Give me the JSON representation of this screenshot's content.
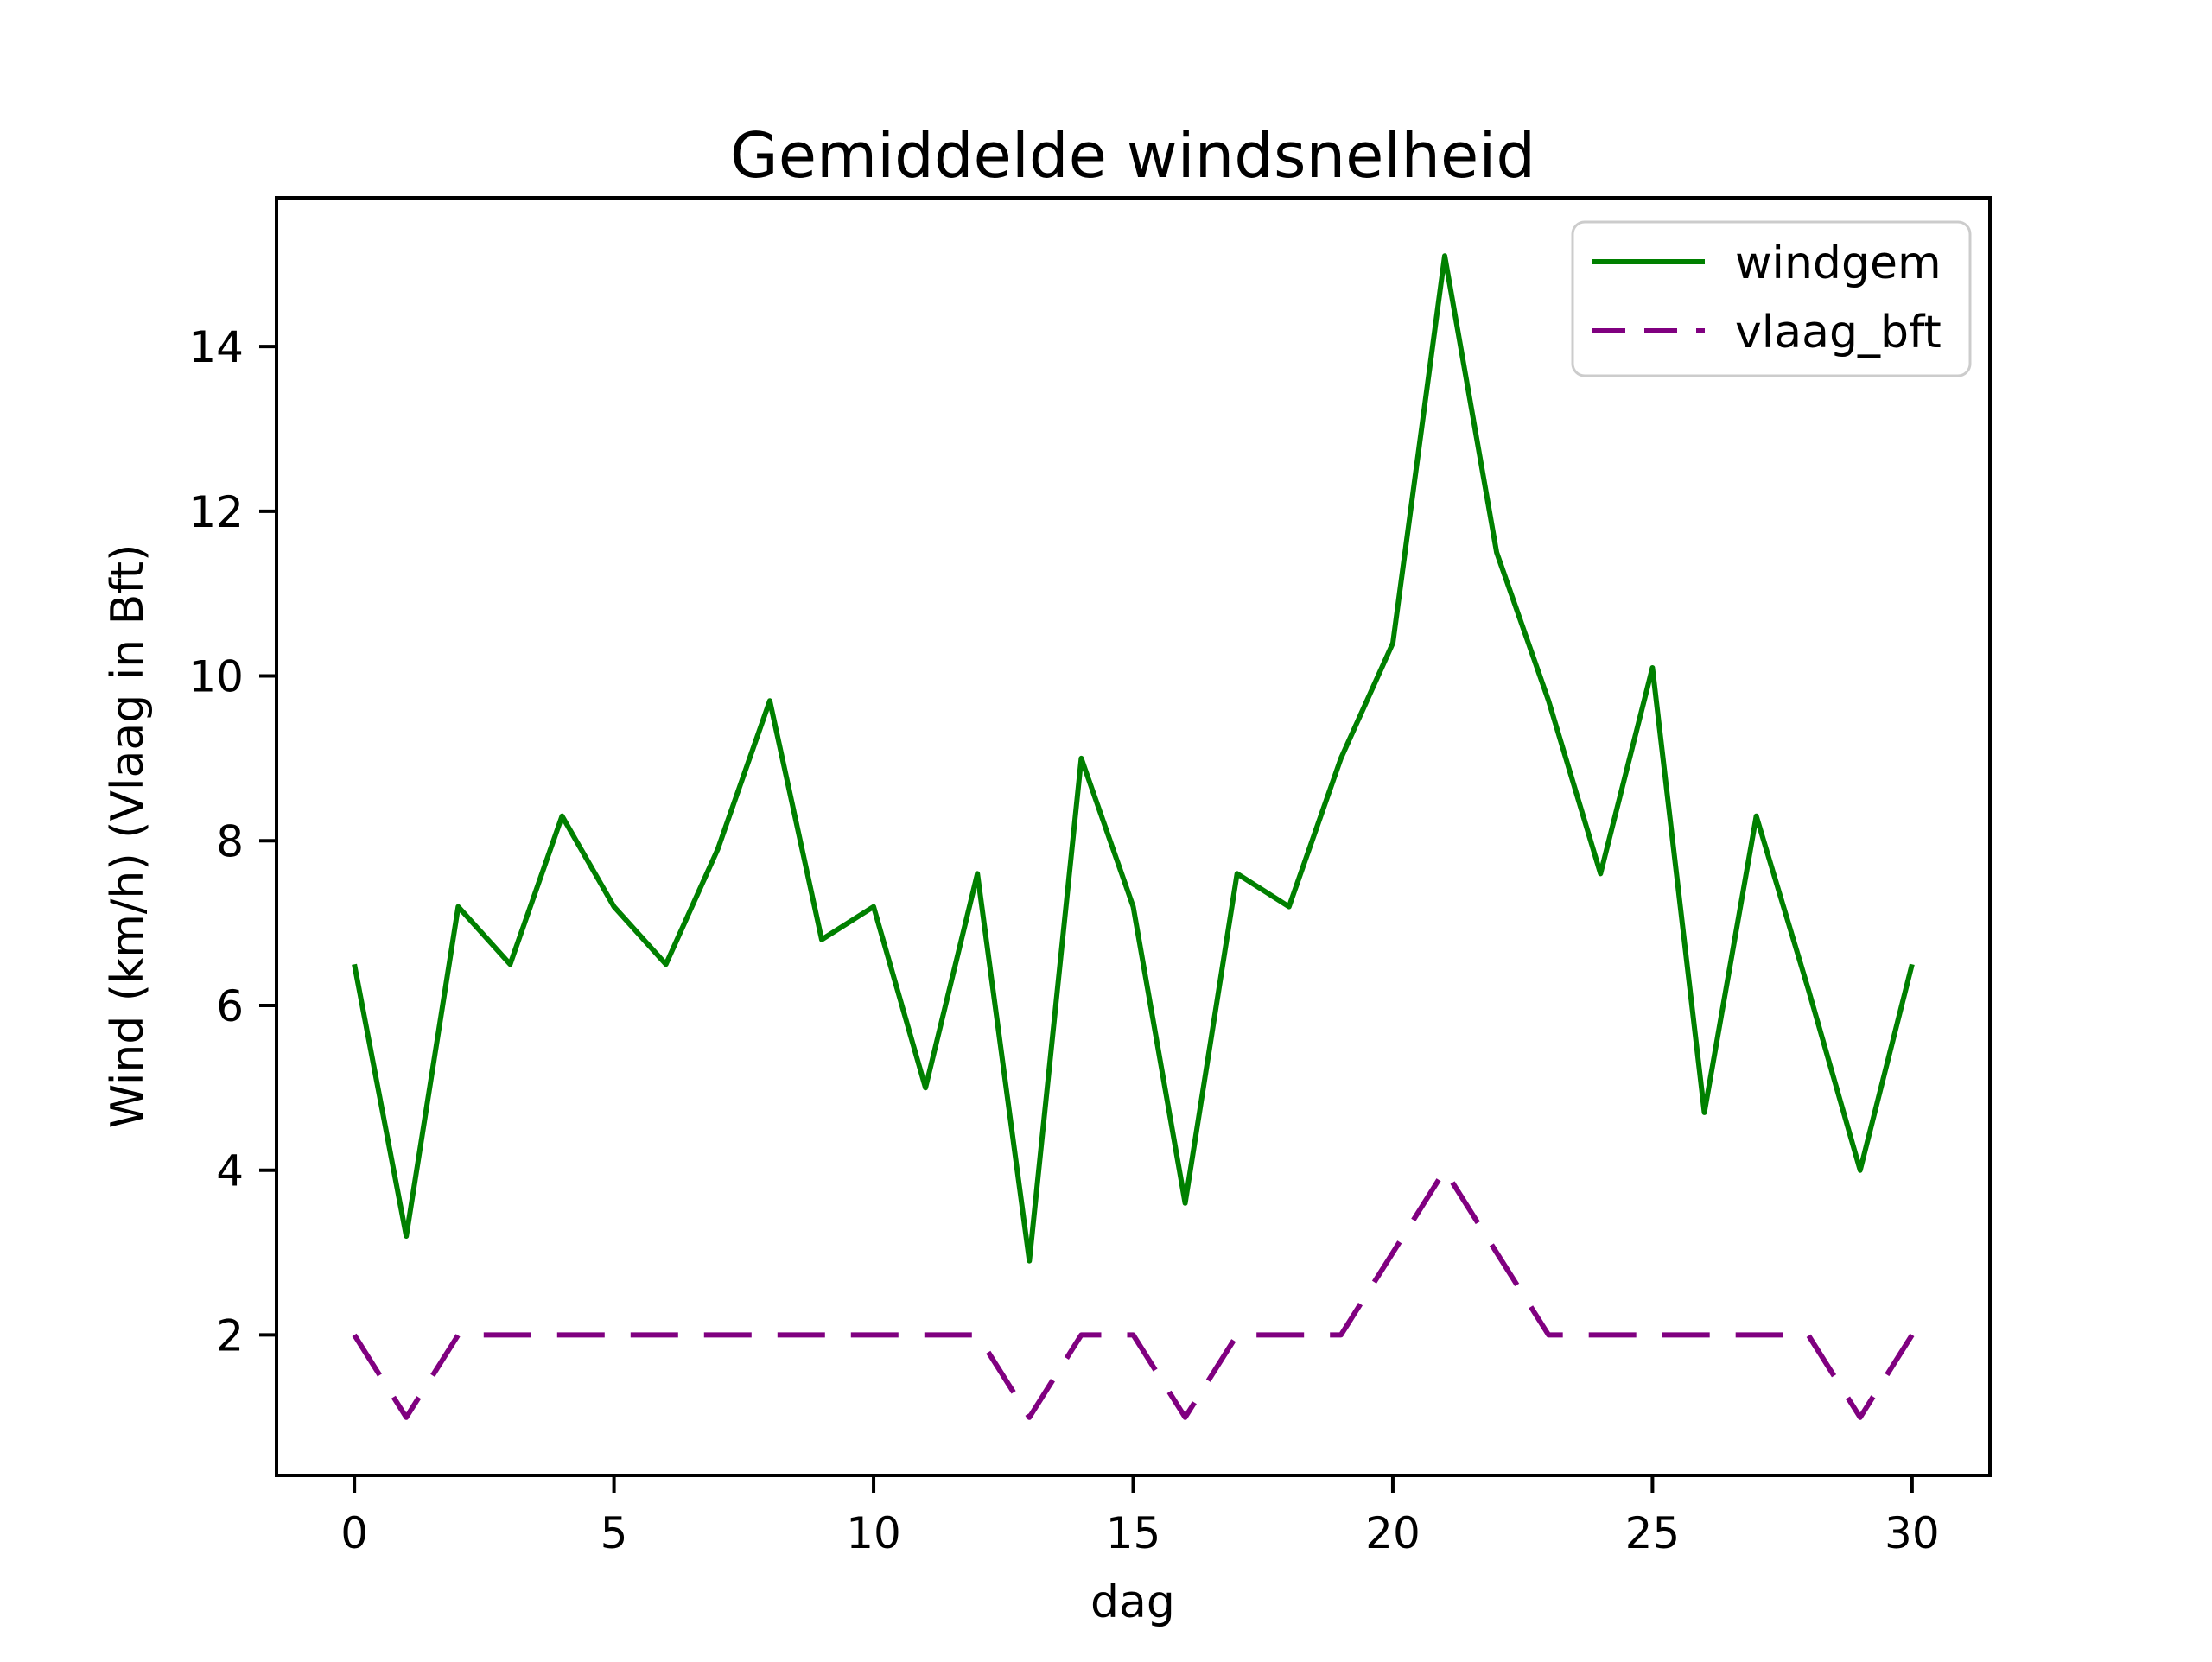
{
  "chart_data": {
    "type": "line",
    "title": "Gemiddelde windsnelheid",
    "xlabel": "dag",
    "ylabel": "Wind (km/h) (Vlaag in Bft)",
    "x": [
      0,
      1,
      2,
      3,
      4,
      5,
      6,
      7,
      8,
      9,
      10,
      11,
      12,
      13,
      14,
      15,
      16,
      17,
      18,
      19,
      20,
      21,
      22,
      23,
      24,
      25,
      26,
      27,
      28,
      29,
      30
    ],
    "series": [
      {
        "name": "windgem",
        "color": "#008000",
        "style": "solid",
        "values": [
          6.5,
          3.2,
          7.2,
          6.5,
          8.3,
          7.2,
          6.5,
          7.9,
          9.7,
          6.8,
          7.2,
          5.0,
          7.6,
          2.9,
          9.0,
          7.2,
          3.6,
          7.6,
          7.2,
          9.0,
          10.4,
          15.1,
          11.5,
          9.7,
          7.6,
          10.1,
          4.7,
          8.3,
          6.2,
          4.0,
          6.5
        ]
      },
      {
        "name": "vlaag_bft",
        "color": "#800080",
        "style": "dashed",
        "values": [
          2,
          1,
          2,
          2,
          2,
          2,
          2,
          2,
          2,
          2,
          2,
          2,
          2,
          1,
          2,
          2,
          1,
          2,
          2,
          2,
          3,
          4,
          3,
          2,
          2,
          2,
          2,
          2,
          2,
          1,
          2
        ]
      }
    ],
    "x_ticks": [
      0,
      5,
      10,
      15,
      20,
      25,
      30
    ],
    "y_ticks": [
      2,
      4,
      6,
      8,
      10,
      12,
      14
    ],
    "xlim": [
      -1.5,
      31.5
    ],
    "ylim": [
      0.295,
      15.805
    ],
    "grid": false,
    "legend": {
      "position": "upper right",
      "entries": [
        "windgem",
        "vlaag_bft"
      ]
    }
  }
}
